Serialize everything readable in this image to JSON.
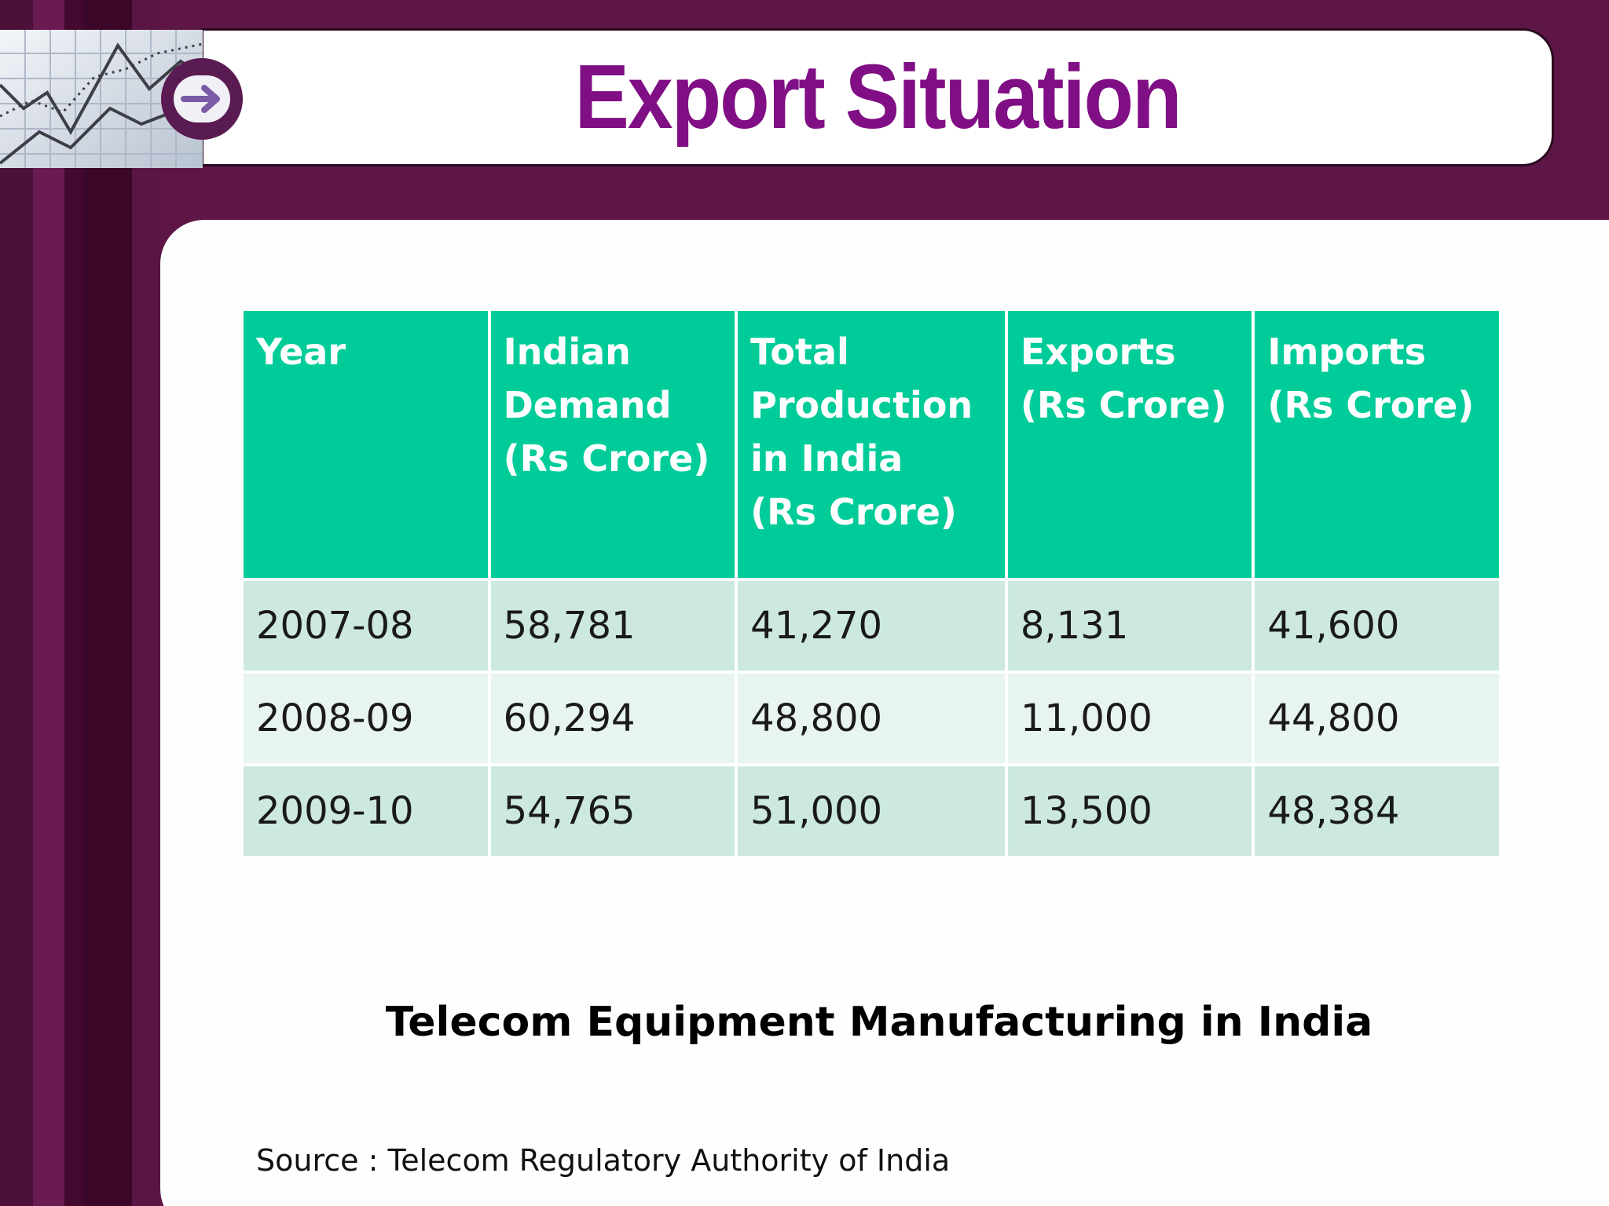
{
  "slide": {
    "title": "Export Situation",
    "caption": "Telecom Equipment Manufacturing in India",
    "source": "Source : Telecom Regulatory Authority of India"
  },
  "table": {
    "headers": [
      [
        "Year"
      ],
      [
        "Indian",
        "Demand",
        "(Rs Crore)"
      ],
      [
        "Total",
        "Production",
        "in India",
        "(Rs Crore)"
      ],
      [
        "Exports",
        "(Rs Crore)"
      ],
      [
        "Imports",
        "(Rs Crore)"
      ]
    ],
    "rows": [
      [
        "2007-08",
        "58,781",
        "41,270",
        "8,131",
        "41,600"
      ],
      [
        "2008-09",
        "60,294",
        "48,800",
        "11,000",
        "44,800"
      ],
      [
        "2009-10",
        "54,765",
        "51,000",
        "13,500",
        "48,384"
      ]
    ]
  },
  "colors": {
    "background": "#5e1647",
    "title": "#800e84",
    "header_fill": "#00cc99",
    "row_dark": "#cde9df",
    "row_light": "#e8f4ef"
  },
  "icons": {
    "header_image": "stock-chart-thumbnail",
    "header_button": "arrow-right-icon"
  }
}
